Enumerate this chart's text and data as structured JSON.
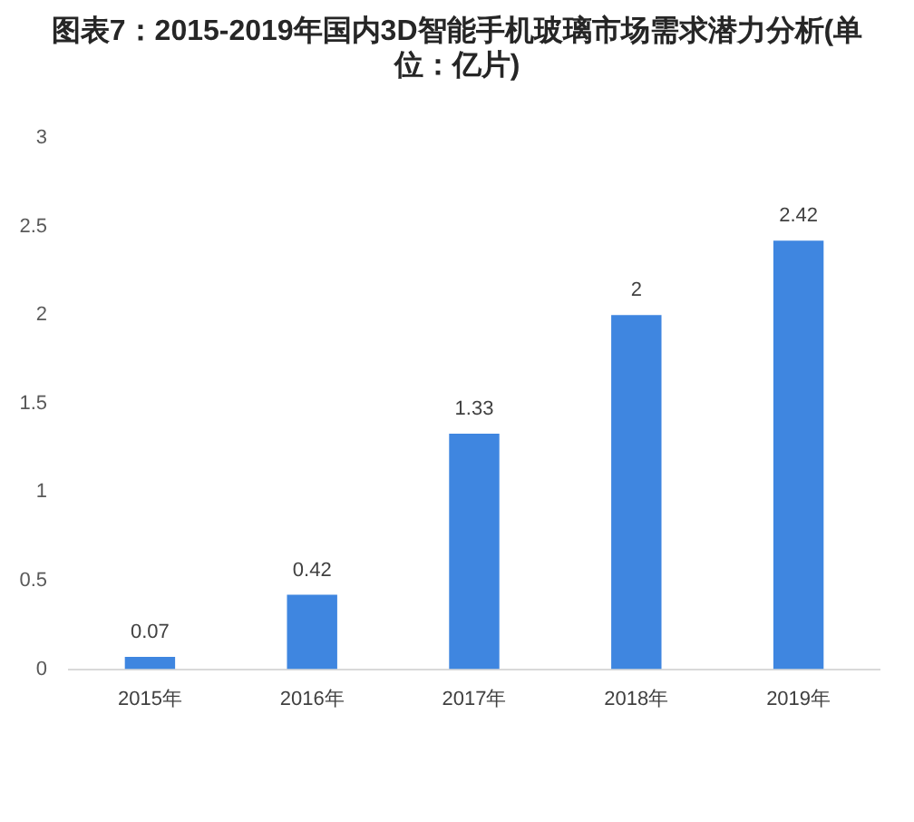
{
  "chart_data": {
    "type": "bar",
    "title": "图表7：2015-2019年国内3D智能手机玻璃市场需求潜力分析(单位：亿片)",
    "categories": [
      "2015年",
      "2016年",
      "2017年",
      "2018年",
      "2019年"
    ],
    "values": [
      0.07,
      0.42,
      1.33,
      2,
      2.42
    ],
    "color": "#3f86e0",
    "ylim": [
      0,
      3
    ],
    "yticks": [
      0,
      0.5,
      1,
      1.5,
      2,
      2.5,
      3
    ],
    "data_labels": true
  }
}
